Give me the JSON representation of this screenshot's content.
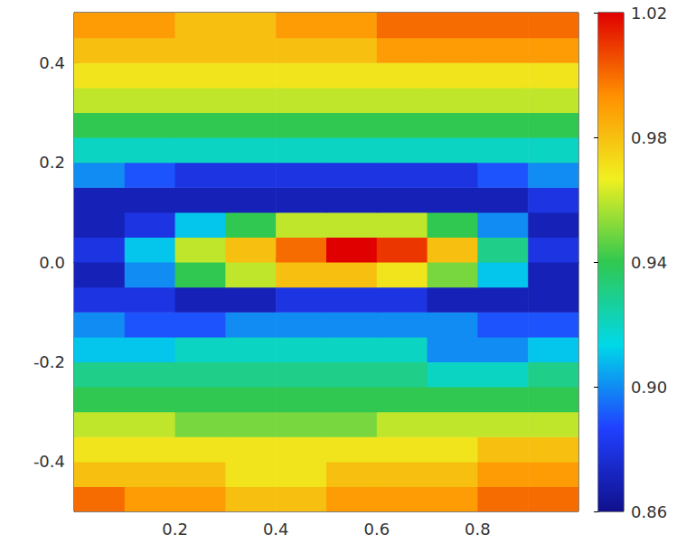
{
  "chart_data": {
    "type": "heatmap",
    "xlim": [
      0,
      1
    ],
    "ylim": [
      -0.5,
      0.5
    ],
    "xticks": [
      0.2,
      0.4,
      0.6,
      0.8
    ],
    "yticks": [
      -0.4,
      -0.2,
      {
        "value": 0,
        "label": "0.0"
      },
      0.2,
      0.4
    ],
    "x_edges": [
      0,
      0.1,
      0.2,
      0.3,
      0.4,
      0.5,
      0.6,
      0.7,
      0.8,
      0.9,
      1
    ],
    "y_edges": [
      -0.5,
      -0.45,
      -0.4,
      -0.35,
      -0.3,
      -0.25,
      -0.2,
      -0.15,
      -0.1,
      -0.05,
      0,
      0.05,
      0.1,
      0.15,
      0.2,
      0.25,
      0.3,
      0.35,
      0.4,
      0.45,
      0.5
    ],
    "values": [
      [
        1.0,
        0.99,
        0.99,
        0.98,
        0.98,
        0.99,
        0.99,
        0.99,
        1.0,
        1.0
      ],
      [
        0.98,
        0.98,
        0.98,
        0.97,
        0.97,
        0.98,
        0.98,
        0.98,
        0.99,
        0.99
      ],
      [
        0.97,
        0.97,
        0.97,
        0.97,
        0.97,
        0.97,
        0.97,
        0.97,
        0.98,
        0.98
      ],
      [
        0.96,
        0.96,
        0.95,
        0.95,
        0.95,
        0.95,
        0.96,
        0.96,
        0.96,
        0.96
      ],
      [
        0.94,
        0.94,
        0.94,
        0.94,
        0.94,
        0.94,
        0.94,
        0.94,
        0.94,
        0.94
      ],
      [
        0.93,
        0.93,
        0.93,
        0.93,
        0.93,
        0.93,
        0.93,
        0.92,
        0.92,
        0.93
      ],
      [
        0.91,
        0.91,
        0.92,
        0.92,
        0.92,
        0.92,
        0.92,
        0.9,
        0.9,
        0.91
      ],
      [
        0.9,
        0.89,
        0.89,
        0.9,
        0.9,
        0.9,
        0.9,
        0.9,
        0.89,
        0.89
      ],
      [
        0.88,
        0.88,
        0.87,
        0.87,
        0.88,
        0.88,
        0.88,
        0.87,
        0.87,
        0.87
      ],
      [
        0.87,
        0.9,
        0.94,
        0.96,
        0.98,
        0.98,
        0.97,
        0.95,
        0.91,
        0.87
      ],
      [
        0.88,
        0.91,
        0.96,
        0.98,
        1.0,
        1.02,
        1.01,
        0.98,
        0.93,
        0.88
      ],
      [
        0.87,
        0.88,
        0.91,
        0.94,
        0.96,
        0.96,
        0.96,
        0.94,
        0.9,
        0.87
      ],
      [
        0.87,
        0.87,
        0.87,
        0.87,
        0.87,
        0.87,
        0.87,
        0.87,
        0.87,
        0.88
      ],
      [
        0.9,
        0.89,
        0.88,
        0.88,
        0.88,
        0.88,
        0.88,
        0.88,
        0.89,
        0.9
      ],
      [
        0.92,
        0.92,
        0.92,
        0.92,
        0.92,
        0.92,
        0.92,
        0.92,
        0.92,
        0.92
      ],
      [
        0.94,
        0.94,
        0.94,
        0.94,
        0.94,
        0.94,
        0.94,
        0.94,
        0.94,
        0.94
      ],
      [
        0.96,
        0.96,
        0.96,
        0.96,
        0.96,
        0.96,
        0.96,
        0.96,
        0.96,
        0.96
      ],
      [
        0.97,
        0.97,
        0.97,
        0.97,
        0.97,
        0.97,
        0.97,
        0.97,
        0.97,
        0.97
      ],
      [
        0.98,
        0.98,
        0.98,
        0.98,
        0.98,
        0.98,
        0.99,
        0.99,
        0.99,
        0.99
      ],
      [
        0.99,
        0.99,
        0.98,
        0.98,
        0.99,
        0.99,
        1.0,
        1.0,
        1.0,
        1.0
      ]
    ],
    "colorbar": {
      "range": [
        0.86,
        1.02
      ],
      "ticks": [
        0.86,
        {
          "value": 0.9,
          "label": "0.90"
        },
        0.94,
        0.98,
        1.02
      ]
    }
  }
}
